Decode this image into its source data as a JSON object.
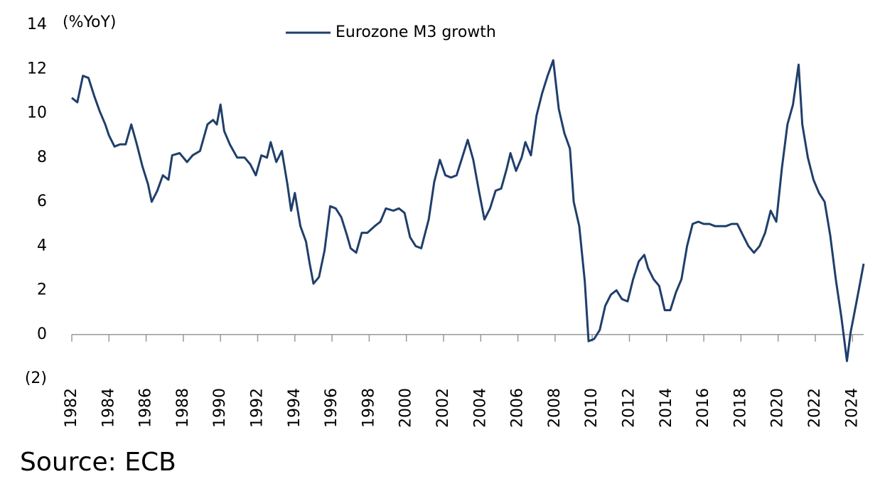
{
  "chart_data": {
    "type": "line",
    "y_label": "(%YoY)",
    "source": "Source: ECB",
    "xlim": [
      1982,
      2024.6
    ],
    "xticks": [
      1982,
      1984,
      1986,
      1988,
      1990,
      1992,
      1994,
      1996,
      1998,
      2000,
      2002,
      2004,
      2006,
      2008,
      2010,
      2012,
      2014,
      2016,
      2018,
      2020,
      2022,
      2024
    ],
    "ylim": [
      -2,
      14
    ],
    "yticks": [
      {
        "value": -2,
        "label": "(2)"
      },
      0,
      2,
      4,
      6,
      8,
      10,
      12,
      14
    ],
    "legend": "top",
    "x": [
      1982.0,
      1982.3,
      1982.6,
      1982.9,
      1983.2,
      1983.5,
      1983.8,
      1984.0,
      1984.3,
      1984.6,
      1984.9,
      1985.2,
      1985.5,
      1985.8,
      1986.1,
      1986.3,
      1986.6,
      1986.9,
      1987.2,
      1987.4,
      1987.8,
      1988.2,
      1988.5,
      1988.9,
      1989.3,
      1989.6,
      1989.8,
      1990.0,
      1990.2,
      1990.5,
      1990.9,
      1991.3,
      1991.6,
      1991.9,
      1992.2,
      1992.5,
      1992.7,
      1993.0,
      1993.3,
      1993.6,
      1993.8,
      1994.0,
      1994.3,
      1994.6,
      1994.8,
      1995.0,
      1995.3,
      1995.6,
      1995.9,
      1996.2,
      1996.5,
      1996.8,
      1997.0,
      1997.3,
      1997.6,
      1997.9,
      1998.3,
      1998.6,
      1998.9,
      1999.3,
      1999.6,
      1999.9,
      2000.2,
      2000.5,
      2000.8,
      2001.2,
      2001.5,
      2001.8,
      2002.1,
      2002.4,
      2002.7,
      2003.0,
      2003.3,
      2003.6,
      2003.9,
      2004.2,
      2004.5,
      2004.8,
      2005.1,
      2005.4,
      2005.6,
      2005.9,
      2006.2,
      2006.4,
      2006.7,
      2007.0,
      2007.3,
      2007.6,
      2007.9,
      2008.2,
      2008.5,
      2008.8,
      2009.0,
      2009.3,
      2009.6,
      2009.8,
      2010.1,
      2010.4,
      2010.7,
      2011.0,
      2011.3,
      2011.6,
      2011.9,
      2012.2,
      2012.5,
      2012.8,
      2013.0,
      2013.3,
      2013.6,
      2013.9,
      2014.2,
      2014.5,
      2014.8,
      2015.1,
      2015.4,
      2015.7,
      2016.0,
      2016.3,
      2016.6,
      2016.9,
      2017.2,
      2017.5,
      2017.8,
      2018.1,
      2018.4,
      2018.7,
      2019.0,
      2019.3,
      2019.6,
      2019.9,
      2020.2,
      2020.5,
      2020.8,
      2021.1,
      2021.3,
      2021.6,
      2021.9,
      2022.2,
      2022.5,
      2022.8,
      2023.1,
      2023.4,
      2023.7,
      2023.9,
      2024.2,
      2024.4,
      2024.6
    ],
    "series": [
      {
        "name": "Eurozone M3 growth",
        "color": "#1f3f6b",
        "values": [
          10.7,
          10.5,
          11.7,
          11.6,
          10.8,
          10.1,
          9.5,
          9.0,
          8.5,
          8.6,
          8.6,
          9.5,
          8.6,
          7.6,
          6.8,
          6.0,
          6.5,
          7.2,
          7.0,
          8.1,
          8.2,
          7.8,
          8.1,
          8.3,
          9.5,
          9.7,
          9.5,
          10.4,
          9.2,
          8.6,
          8.0,
          8.0,
          7.7,
          7.2,
          8.1,
          8.0,
          8.7,
          7.8,
          8.3,
          6.8,
          5.6,
          6.4,
          4.9,
          4.2,
          3.2,
          2.3,
          2.6,
          3.8,
          5.8,
          5.7,
          5.3,
          4.5,
          3.9,
          3.7,
          4.6,
          4.6,
          4.9,
          5.1,
          5.7,
          5.6,
          5.7,
          5.5,
          4.4,
          4.0,
          3.9,
          5.2,
          6.9,
          7.9,
          7.2,
          7.1,
          7.2,
          8.0,
          8.8,
          7.9,
          6.5,
          5.2,
          5.7,
          6.5,
          6.6,
          7.5,
          8.2,
          7.4,
          8.0,
          8.7,
          8.1,
          9.9,
          10.9,
          11.7,
          12.4,
          10.2,
          9.1,
          8.4,
          6.0,
          4.9,
          2.4,
          -0.3,
          -0.2,
          0.2,
          1.3,
          1.8,
          2.0,
          1.6,
          1.5,
          2.5,
          3.3,
          3.6,
          3.0,
          2.5,
          2.2,
          1.1,
          1.1,
          1.9,
          2.5,
          4.0,
          5.0,
          5.1,
          5.0,
          5.0,
          4.9,
          4.9,
          4.9,
          5.0,
          5.0,
          4.5,
          4.0,
          3.7,
          4.0,
          4.6,
          5.6,
          5.1,
          7.5,
          9.5,
          10.4,
          12.2,
          9.5,
          8.0,
          7.0,
          6.4,
          6.0,
          4.5,
          2.5,
          0.8,
          -1.2,
          0.1,
          1.4,
          2.3,
          3.2
        ]
      }
    ]
  }
}
